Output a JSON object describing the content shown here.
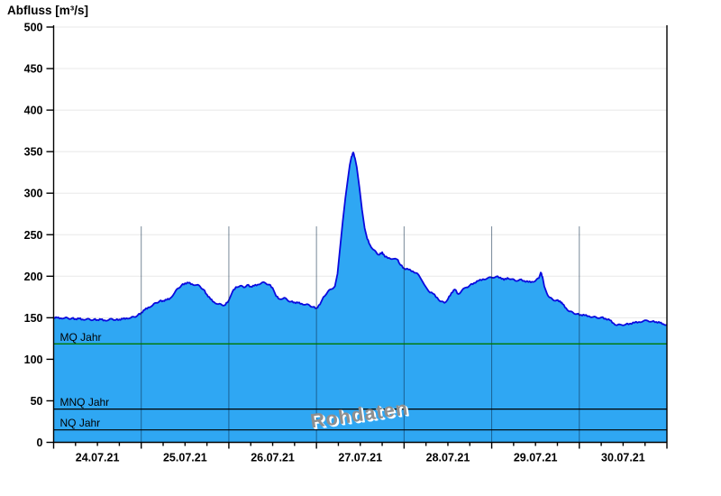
{
  "chart_data": {
    "type": "area",
    "ylabel": "Abfluss [m³/s]",
    "annotation": "Rohdaten",
    "series_name": "Abfluss Rohdaten",
    "ylim": [
      0,
      500
    ],
    "ytick_step": 50,
    "x_range_days": [
      0,
      7
    ],
    "x_tick_labels": [
      "24.07.21",
      "25.07.21",
      "26.07.21",
      "27.07.21",
      "28.07.21",
      "29.07.21",
      "30.07.21"
    ],
    "x_minor_ticks_per_day": 4,
    "grid": "on",
    "reference_lines": [
      {
        "label": "MQ Jahr",
        "value": 118.5,
        "color": "#007800"
      },
      {
        "label": "MNQ Jahr",
        "value": 40,
        "color": "#000000"
      },
      {
        "label": "NQ Jahr",
        "value": 15,
        "color": "#000000"
      }
    ],
    "points": [
      [
        0.0,
        150.5
      ],
      [
        0.04,
        150.0
      ],
      [
        0.08,
        149.5
      ],
      [
        0.13,
        150.0
      ],
      [
        0.17,
        149.0
      ],
      [
        0.21,
        149.5
      ],
      [
        0.25,
        148.5
      ],
      [
        0.29,
        149.0
      ],
      [
        0.33,
        148.0
      ],
      [
        0.38,
        148.5
      ],
      [
        0.42,
        147.5
      ],
      [
        0.46,
        148.0
      ],
      [
        0.5,
        147.5
      ],
      [
        0.54,
        148.0
      ],
      [
        0.58,
        147.0
      ],
      [
        0.63,
        147.5
      ],
      [
        0.67,
        148.5
      ],
      [
        0.71,
        147.5
      ],
      [
        0.75,
        148.0
      ],
      [
        0.79,
        148.5
      ],
      [
        0.83,
        149.5
      ],
      [
        0.88,
        150.0
      ],
      [
        0.92,
        151.0
      ],
      [
        0.96,
        153.0
      ],
      [
        1.0,
        156.0
      ],
      [
        1.04,
        159.5
      ],
      [
        1.08,
        162.5
      ],
      [
        1.13,
        165.0
      ],
      [
        1.17,
        168.0
      ],
      [
        1.21,
        170.0
      ],
      [
        1.25,
        170.5
      ],
      [
        1.29,
        171.5
      ],
      [
        1.33,
        173.5
      ],
      [
        1.38,
        180.0
      ],
      [
        1.42,
        185.5
      ],
      [
        1.46,
        189.0
      ],
      [
        1.5,
        191.5
      ],
      [
        1.54,
        192.0
      ],
      [
        1.58,
        190.5
      ],
      [
        1.63,
        189.5
      ],
      [
        1.67,
        188.0
      ],
      [
        1.71,
        184.0
      ],
      [
        1.75,
        178.0
      ],
      [
        1.79,
        172.5
      ],
      [
        1.83,
        169.0
      ],
      [
        1.88,
        166.5
      ],
      [
        1.92,
        165.5
      ],
      [
        1.96,
        165.5
      ],
      [
        2.0,
        171.0
      ],
      [
        2.04,
        181.0
      ],
      [
        2.08,
        187.0
      ],
      [
        2.13,
        188.5
      ],
      [
        2.17,
        186.5
      ],
      [
        2.21,
        189.5
      ],
      [
        2.25,
        187.5
      ],
      [
        2.29,
        188.5
      ],
      [
        2.33,
        190.0
      ],
      [
        2.38,
        192.5
      ],
      [
        2.42,
        191.5
      ],
      [
        2.46,
        190.0
      ],
      [
        2.5,
        186.0
      ],
      [
        2.54,
        176.0
      ],
      [
        2.58,
        172.5
      ],
      [
        2.63,
        174.0
      ],
      [
        2.67,
        171.0
      ],
      [
        2.71,
        169.5
      ],
      [
        2.75,
        168.5
      ],
      [
        2.79,
        168.0
      ],
      [
        2.83,
        167.0
      ],
      [
        2.88,
        166.0
      ],
      [
        2.92,
        165.0
      ],
      [
        2.96,
        163.0
      ],
      [
        3.0,
        161.5
      ],
      [
        3.04,
        166.0
      ],
      [
        3.08,
        175.0
      ],
      [
        3.13,
        181.5
      ],
      [
        3.17,
        184.5
      ],
      [
        3.21,
        188.0
      ],
      [
        3.24,
        203.0
      ],
      [
        3.27,
        235.0
      ],
      [
        3.3,
        266.0
      ],
      [
        3.33,
        294.0
      ],
      [
        3.36,
        318.0
      ],
      [
        3.38,
        334.0
      ],
      [
        3.4,
        344.0
      ],
      [
        3.42,
        349.0
      ],
      [
        3.44,
        342.0
      ],
      [
        3.46,
        331.0
      ],
      [
        3.49,
        307.0
      ],
      [
        3.52,
        280.0
      ],
      [
        3.55,
        258.0
      ],
      [
        3.58,
        245.0
      ],
      [
        3.61,
        238.0
      ],
      [
        3.65,
        232.0
      ],
      [
        3.69,
        227.5
      ],
      [
        3.72,
        226.0
      ],
      [
        3.75,
        229.0
      ],
      [
        3.78,
        223.5
      ],
      [
        3.83,
        222.0
      ],
      [
        3.88,
        221.0
      ],
      [
        3.93,
        219.5
      ],
      [
        3.96,
        213.5
      ],
      [
        4.0,
        209.5
      ],
      [
        4.05,
        208.0
      ],
      [
        4.1,
        206.0
      ],
      [
        4.14,
        204.0
      ],
      [
        4.18,
        199.0
      ],
      [
        4.23,
        190.0
      ],
      [
        4.28,
        182.0
      ],
      [
        4.33,
        179.0
      ],
      [
        4.38,
        174.0
      ],
      [
        4.42,
        169.5
      ],
      [
        4.46,
        168.0
      ],
      [
        4.5,
        172.5
      ],
      [
        4.54,
        180.0
      ],
      [
        4.58,
        184.0
      ],
      [
        4.62,
        178.5
      ],
      [
        4.66,
        183.0
      ],
      [
        4.71,
        186.5
      ],
      [
        4.75,
        189.0
      ],
      [
        4.8,
        192.0
      ],
      [
        4.85,
        194.5
      ],
      [
        4.9,
        196.5
      ],
      [
        4.95,
        197.5
      ],
      [
        5.0,
        198.5
      ],
      [
        5.05,
        199.5
      ],
      [
        5.1,
        198.5
      ],
      [
        5.14,
        195.5
      ],
      [
        5.18,
        198.0
      ],
      [
        5.23,
        196.5
      ],
      [
        5.27,
        194.5
      ],
      [
        5.32,
        196.0
      ],
      [
        5.37,
        194.5
      ],
      [
        5.42,
        193.0
      ],
      [
        5.46,
        193.5
      ],
      [
        5.5,
        194.5
      ],
      [
        5.54,
        198.0
      ],
      [
        5.56,
        204.5
      ],
      [
        5.58,
        199.0
      ],
      [
        5.6,
        188.0
      ],
      [
        5.63,
        179.5
      ],
      [
        5.66,
        174.5
      ],
      [
        5.7,
        171.5
      ],
      [
        5.74,
        171.0
      ],
      [
        5.78,
        170.0
      ],
      [
        5.81,
        166.5
      ],
      [
        5.85,
        161.5
      ],
      [
        5.89,
        157.5
      ],
      [
        5.93,
        156.0
      ],
      [
        5.97,
        154.5
      ],
      [
        6.02,
        153.5
      ],
      [
        6.06,
        153.0
      ],
      [
        6.11,
        152.0
      ],
      [
        6.16,
        151.0
      ],
      [
        6.2,
        150.0
      ],
      [
        6.25,
        150.5
      ],
      [
        6.3,
        149.0
      ],
      [
        6.35,
        147.0
      ],
      [
        6.39,
        143.5
      ],
      [
        6.43,
        141.0
      ],
      [
        6.48,
        141.5
      ],
      [
        6.53,
        142.0
      ],
      [
        6.58,
        143.0
      ],
      [
        6.63,
        144.0
      ],
      [
        6.68,
        145.0
      ],
      [
        6.73,
        146.0
      ],
      [
        6.78,
        146.5
      ],
      [
        6.83,
        145.5
      ],
      [
        6.88,
        145.0
      ],
      [
        6.92,
        144.0
      ],
      [
        6.96,
        142.5
      ],
      [
        7.0,
        141.5
      ]
    ]
  },
  "colors": {
    "area_fill": "#2fa7f3",
    "curve_stroke": "#0a0ade",
    "grid": "#e8e8e8",
    "day_gridline": "rgba(10,40,70,0.55)",
    "axis": "#000000",
    "tick_text": "#000000",
    "watermark_text": "#8f8f8f"
  }
}
